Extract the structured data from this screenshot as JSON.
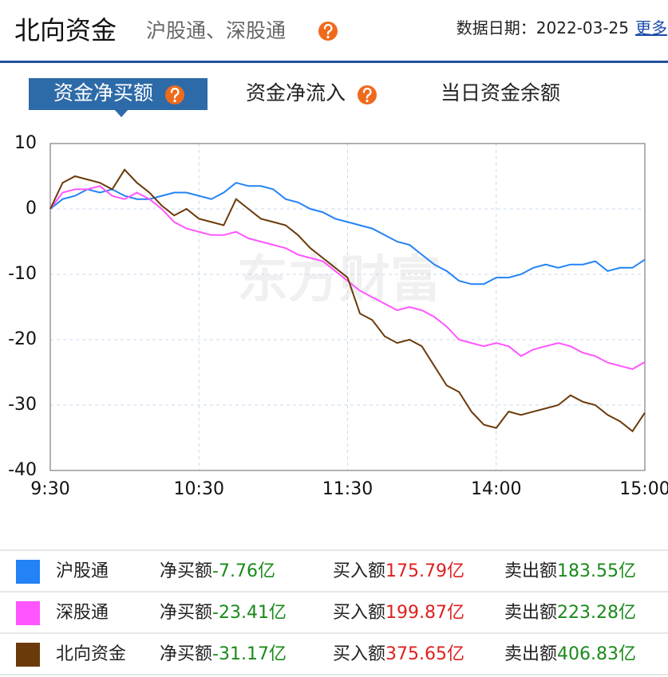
{
  "header": {
    "title": "北向资金",
    "subtitle": "沪股通、深股通",
    "date_label": "数据日期：",
    "date": "2022-03-25",
    "more": "更多"
  },
  "tabs": [
    "资金净买额",
    "资金净流入",
    "当日资金余额"
  ],
  "watermark": "东方财富",
  "chart_data": {
    "type": "line",
    "x": [
      0,
      5,
      10,
      15,
      20,
      25,
      30,
      35,
      40,
      45,
      50,
      55,
      60,
      65,
      70,
      75,
      80,
      85,
      90,
      95,
      100,
      105,
      110,
      115,
      120,
      125,
      130,
      135,
      140,
      145,
      150,
      155,
      160,
      165,
      170,
      175,
      180,
      185,
      190,
      195,
      200,
      205,
      210,
      215,
      220,
      225,
      230,
      235,
      240
    ],
    "xlim": [
      0,
      240
    ],
    "xticks": [
      {
        "value": 0,
        "label": "9:30"
      },
      {
        "value": 60,
        "label": "10:30"
      },
      {
        "value": 120,
        "label": "11:30"
      },
      {
        "value": 180,
        "label": "14:00"
      },
      {
        "value": 240,
        "label": "15:00"
      }
    ],
    "ylim": [
      -40,
      10
    ],
    "yticks": [
      -40,
      -30,
      -20,
      -10,
      0,
      10
    ],
    "grid": true,
    "series": [
      {
        "name": "沪股通",
        "color": "#2383f6",
        "values": [
          0,
          1.5,
          2,
          3,
          2.5,
          3,
          2,
          1.5,
          1.5,
          2,
          2.5,
          2.5,
          2,
          1.5,
          2.5,
          4,
          3.5,
          3.5,
          3,
          1.5,
          1,
          0,
          -0.5,
          -1.5,
          -2,
          -2.5,
          -3,
          -4,
          -5,
          -5.5,
          -7,
          -8.5,
          -9.5,
          -11,
          -11.5,
          -11.5,
          -10.5,
          -10.5,
          -10,
          -9,
          -8.5,
          -9,
          -8.5,
          -8.5,
          -8,
          -9.5,
          -9,
          -9,
          -7.76
        ]
      },
      {
        "name": "深股通",
        "color": "#ff55ff",
        "values": [
          0,
          2.5,
          3,
          3,
          3.5,
          2,
          1.5,
          2.5,
          1.5,
          0,
          -2,
          -3,
          -3.5,
          -4,
          -4,
          -3.5,
          -4.5,
          -5,
          -5.5,
          -6,
          -7,
          -7.5,
          -8,
          -9.5,
          -11,
          -12.5,
          -13.5,
          -14.5,
          -15.5,
          -15,
          -15.5,
          -16.5,
          -18,
          -20,
          -20.5,
          -21,
          -20.5,
          -21,
          -22.5,
          -21.5,
          -21,
          -20.5,
          -21,
          -22,
          -22.5,
          -23.5,
          -24,
          -24.5,
          -23.41
        ]
      },
      {
        "name": "北向资金",
        "color": "#6b3a0a",
        "values": [
          0,
          4,
          5,
          4.5,
          4,
          3,
          6,
          4,
          2.5,
          0.5,
          -1,
          0,
          -1.5,
          -2,
          -2.5,
          1.5,
          0,
          -1.5,
          -2,
          -2.5,
          -4,
          -6,
          -7.5,
          -9,
          -10.5,
          -16,
          -17,
          -19.5,
          -20.5,
          -20,
          -21,
          -24,
          -27,
          -28,
          -31,
          -33,
          -33.5,
          -31,
          -31.5,
          -31,
          -30.5,
          -30,
          -28.5,
          -29.5,
          -30,
          -31.5,
          -32.5,
          -34,
          -31.17
        ]
      }
    ]
  },
  "summary": [
    {
      "net_label": "净买额",
      "net": "-7.76亿",
      "buy_label": "买入额",
      "buy": "175.79亿",
      "sell_label": "卖出额",
      "sell": "183.55亿"
    },
    {
      "net_label": "净买额",
      "net": "-23.41亿",
      "buy_label": "买入额",
      "buy": "199.87亿",
      "sell_label": "卖出额",
      "sell": "223.28亿"
    },
    {
      "net_label": "净买额",
      "net": "-31.17亿",
      "buy_label": "买入额",
      "buy": "375.65亿",
      "sell_label": "卖出额",
      "sell": "406.83亿"
    }
  ]
}
